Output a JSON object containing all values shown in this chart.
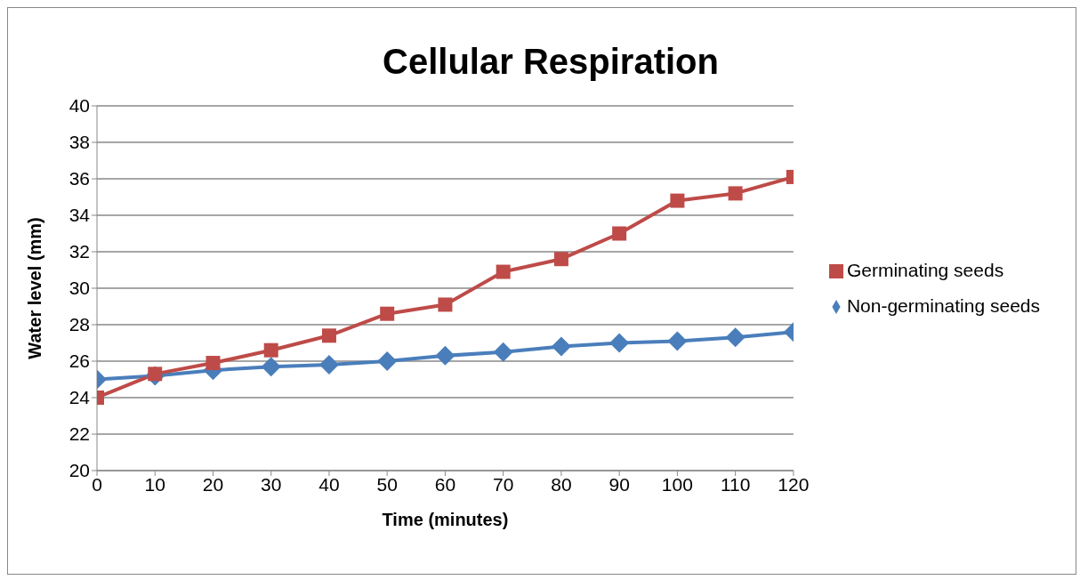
{
  "chart_data": {
    "type": "line",
    "title": "Cellular Respiration",
    "xlabel": "Time (minutes)",
    "ylabel": "Water level (mm)",
    "x": [
      0,
      10,
      20,
      30,
      40,
      50,
      60,
      70,
      80,
      90,
      100,
      110,
      120
    ],
    "series": [
      {
        "name": "Non-germinating seeds",
        "color": "#4a7ebb",
        "marker": "diamond",
        "values": [
          25.0,
          25.2,
          25.5,
          25.7,
          25.8,
          26.0,
          26.3,
          26.5,
          26.8,
          27.0,
          27.1,
          27.3,
          27.6
        ]
      },
      {
        "name": "Germinating seeds",
        "color": "#be4b48",
        "marker": "square",
        "values": [
          24.0,
          25.3,
          25.9,
          26.6,
          27.4,
          28.6,
          29.1,
          30.9,
          31.6,
          33.0,
          34.8,
          35.2,
          36.1
        ]
      }
    ],
    "xlim": [
      0,
      120
    ],
    "xticks": [
      0,
      10,
      20,
      30,
      40,
      50,
      60,
      70,
      80,
      90,
      100,
      110,
      120
    ],
    "ylim": [
      20,
      40
    ],
    "yticks": [
      20,
      22,
      24,
      26,
      28,
      30,
      32,
      34,
      36,
      38,
      40
    ],
    "grid": "y",
    "legend": "right",
    "line_style": "solid"
  }
}
